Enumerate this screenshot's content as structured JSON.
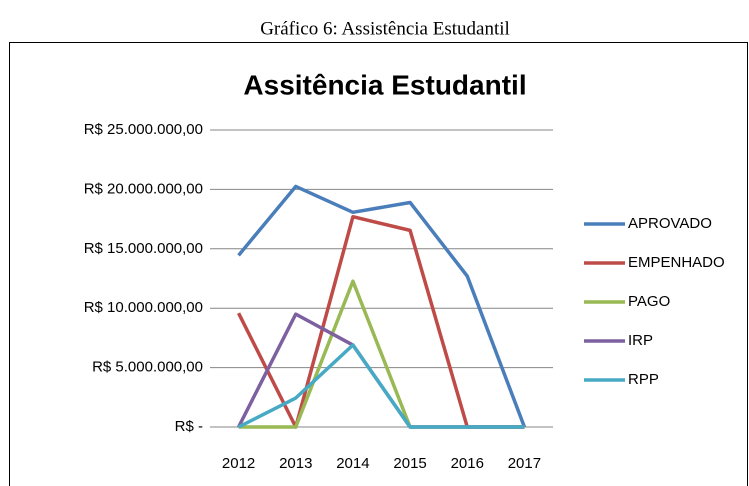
{
  "caption": "Gráfico 6: Assistência Estudantil",
  "chart_data": {
    "type": "line",
    "title": "Assitência Estudantil",
    "categories": [
      "2012",
      "2013",
      "2014",
      "2015",
      "2016",
      "2017"
    ],
    "series": [
      {
        "name": "APROVADO",
        "color": "#4a7ebb",
        "values": [
          14450000,
          20250000,
          18070000,
          18900000,
          12700000,
          0
        ]
      },
      {
        "name": "EMPENHADO",
        "color": "#be4b48",
        "values": [
          9580000,
          0,
          17700000,
          16550000,
          0,
          0
        ]
      },
      {
        "name": "PAGO",
        "color": "#98b954",
        "values": [
          0,
          0,
          12270000,
          0,
          0,
          0
        ]
      },
      {
        "name": "IRP",
        "color": "#7d60a0",
        "values": [
          0,
          9500000,
          6900000,
          0,
          0,
          0
        ]
      },
      {
        "name": "RPP",
        "color": "#46aac5",
        "values": [
          0,
          2440000,
          6900000,
          0,
          0,
          0
        ]
      }
    ],
    "ylim": [
      0,
      25000000
    ],
    "yticks": [
      {
        "value": 0,
        "label": "R$ -"
      },
      {
        "value": 5000000,
        "label": "R$ 5.000.000,00"
      },
      {
        "value": 10000000,
        "label": "R$ 10.000.000,00"
      },
      {
        "value": 15000000,
        "label": "R$ 15.000.000,00"
      },
      {
        "value": 20000000,
        "label": "R$ 20.000.000,00"
      },
      {
        "value": 25000000,
        "label": "R$ 25.000.000,00"
      }
    ],
    "grid": true,
    "legend": "right"
  }
}
